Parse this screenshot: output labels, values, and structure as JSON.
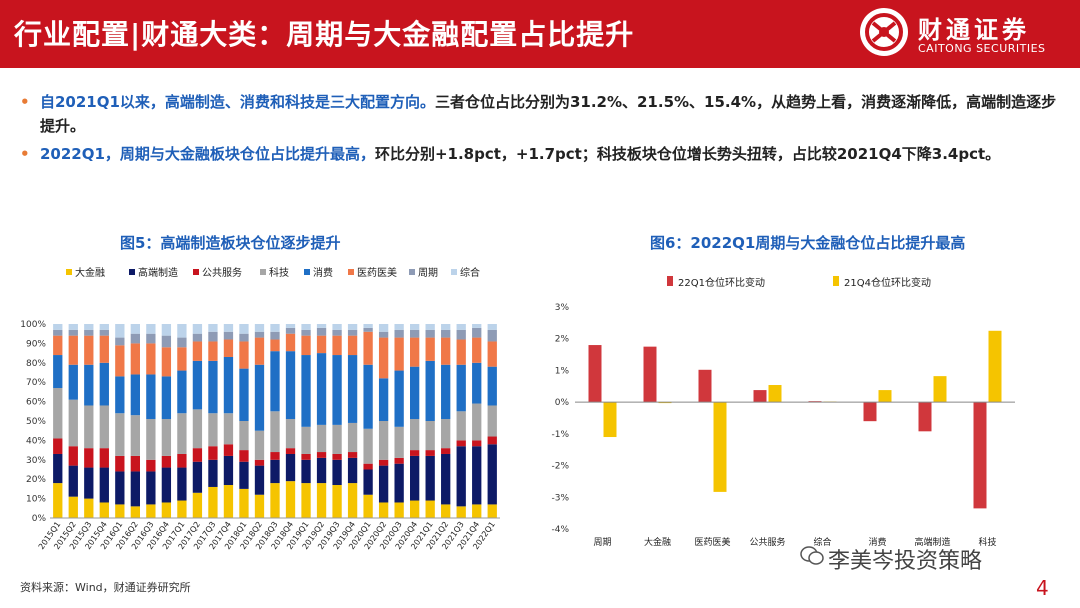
{
  "header": {
    "title": "行业配置|财通大类：周期与大金融配置占比提升",
    "logo_cn": "财通证券",
    "logo_en": "CAITONG SECURITIES"
  },
  "bullets": [
    {
      "marker": "•",
      "highlight": "自2021Q1以来，高端制造、消费和科技是三大配置方向。",
      "text": "三者仓位占比分别为31.2%、21.5%、15.4%，从趋势上看，消费逐渐降低，高端制造逐步提升。"
    },
    {
      "marker": "•",
      "highlight": "2022Q1，周期与大金融板块仓位占比提升最高，",
      "text": "环比分别+1.8pct，+1.7pct；科技板块仓位增长势头扭转，占比较2021Q4下降3.4pct。"
    }
  ],
  "source": "资料来源：Wind，财通证券研究所",
  "watermark": "李美岑投资策略",
  "page_number": "4",
  "colors": {
    "brand_red": "#c8141e",
    "title_blue": "#1f5fb8",
    "bullet_orange": "#e87b35"
  },
  "chart_data": [
    {
      "type": "bar",
      "stacked": true,
      "title": "图5：高端制造板块仓位逐步提升",
      "categories": [
        "2015Q1",
        "2015Q2",
        "2015Q3",
        "2015Q4",
        "2016Q1",
        "2016Q2",
        "2016Q3",
        "2016Q4",
        "2017Q1",
        "2017Q2",
        "2017Q3",
        "2017Q4",
        "2018Q1",
        "2018Q2",
        "2018Q3",
        "2018Q4",
        "2019Q1",
        "2019Q2",
        "2019Q3",
        "2019Q4",
        "2020Q1",
        "2020Q2",
        "2020Q3",
        "2020Q4",
        "2021Q1",
        "2021Q2",
        "2021Q3",
        "2021Q4",
        "2022Q1"
      ],
      "yticks": [
        "0%",
        "10%",
        "20%",
        "30%",
        "40%",
        "50%",
        "60%",
        "70%",
        "80%",
        "90%",
        "100%"
      ],
      "ylim": [
        0,
        100
      ],
      "series": [
        {
          "name": "大金融",
          "color": "#f5c400",
          "values": [
            18,
            11,
            10,
            8,
            7,
            6,
            7,
            8,
            9,
            13,
            16,
            17,
            15,
            12,
            18,
            19,
            18,
            18,
            17,
            18,
            12,
            8,
            8,
            9,
            9,
            7,
            6,
            7,
            7
          ]
        },
        {
          "name": "高端制造",
          "color": "#0d1a66",
          "values": [
            15,
            16,
            16,
            18,
            17,
            18,
            17,
            18,
            17,
            16,
            14,
            15,
            14,
            15,
            12,
            14,
            12,
            13,
            13,
            13,
            13,
            19,
            20,
            23,
            23,
            26,
            31,
            30,
            31
          ]
        },
        {
          "name": "公共服务",
          "color": "#c8141e",
          "values": [
            8,
            10,
            10,
            10,
            8,
            8,
            6,
            6,
            7,
            7,
            7,
            6,
            6,
            3,
            4,
            3,
            3,
            3,
            3,
            3,
            3,
            3,
            3,
            3,
            3,
            3,
            3,
            3,
            4
          ]
        },
        {
          "name": "科技",
          "color": "#a6a6a6",
          "values": [
            26,
            24,
            22,
            22,
            22,
            21,
            21,
            19,
            21,
            20,
            17,
            16,
            15,
            15,
            21,
            15,
            14,
            14,
            15,
            15,
            18,
            20,
            16,
            16,
            15,
            15,
            15,
            19,
            16
          ]
        },
        {
          "name": "消费",
          "color": "#1f6fc5",
          "values": [
            17,
            18,
            21,
            22,
            19,
            21,
            23,
            22,
            22,
            25,
            27,
            29,
            27,
            34,
            31,
            35,
            37,
            37,
            36,
            35,
            33,
            22,
            29,
            27,
            31,
            28,
            24,
            21,
            20
          ]
        },
        {
          "name": "医药医美",
          "color": "#f07848",
          "values": [
            10,
            15,
            15,
            14,
            16,
            16,
            16,
            15,
            12,
            10,
            10,
            9,
            14,
            14,
            6,
            9,
            10,
            9,
            10,
            10,
            17,
            21,
            17,
            15,
            12,
            14,
            13,
            13,
            13
          ]
        },
        {
          "name": "周期",
          "color": "#8e9bb5",
          "values": [
            3,
            3,
            3,
            3,
            4,
            5,
            5,
            6,
            5,
            4,
            5,
            4,
            4,
            3,
            4,
            3,
            3,
            4,
            3,
            3,
            2,
            3,
            4,
            4,
            4,
            4,
            5,
            5,
            6
          ]
        },
        {
          "name": "综合",
          "color": "#bcd3ea",
          "values": [
            3,
            3,
            3,
            3,
            7,
            5,
            5,
            6,
            7,
            5,
            4,
            4,
            5,
            4,
            4,
            2,
            3,
            2,
            3,
            3,
            2,
            4,
            3,
            3,
            3,
            3,
            3,
            2,
            3
          ]
        }
      ]
    },
    {
      "type": "bar",
      "title": "图6：2022Q1周期与大金融仓位占比提升最高",
      "categories": [
        "周期",
        "大金融",
        "医药医美",
        "公共服务",
        "综合",
        "消费",
        "高端制造",
        "科技"
      ],
      "yticks": [
        "3%",
        "2%",
        "1%",
        "0%",
        "-1%",
        "-2%",
        "-3%",
        "-4%"
      ],
      "ylim": [
        -4,
        3
      ],
      "series": [
        {
          "name": "22Q1仓位环比变动",
          "color": "#d0373c",
          "values": [
            1.8,
            1.75,
            1.02,
            0.38,
            0.03,
            -0.6,
            -0.92,
            -3.35
          ]
        },
        {
          "name": "21Q4仓位环比变动",
          "color": "#f5c400",
          "values": [
            -1.1,
            -0.03,
            -2.83,
            0.54,
            0.02,
            0.38,
            0.82,
            2.25
          ]
        }
      ]
    }
  ]
}
